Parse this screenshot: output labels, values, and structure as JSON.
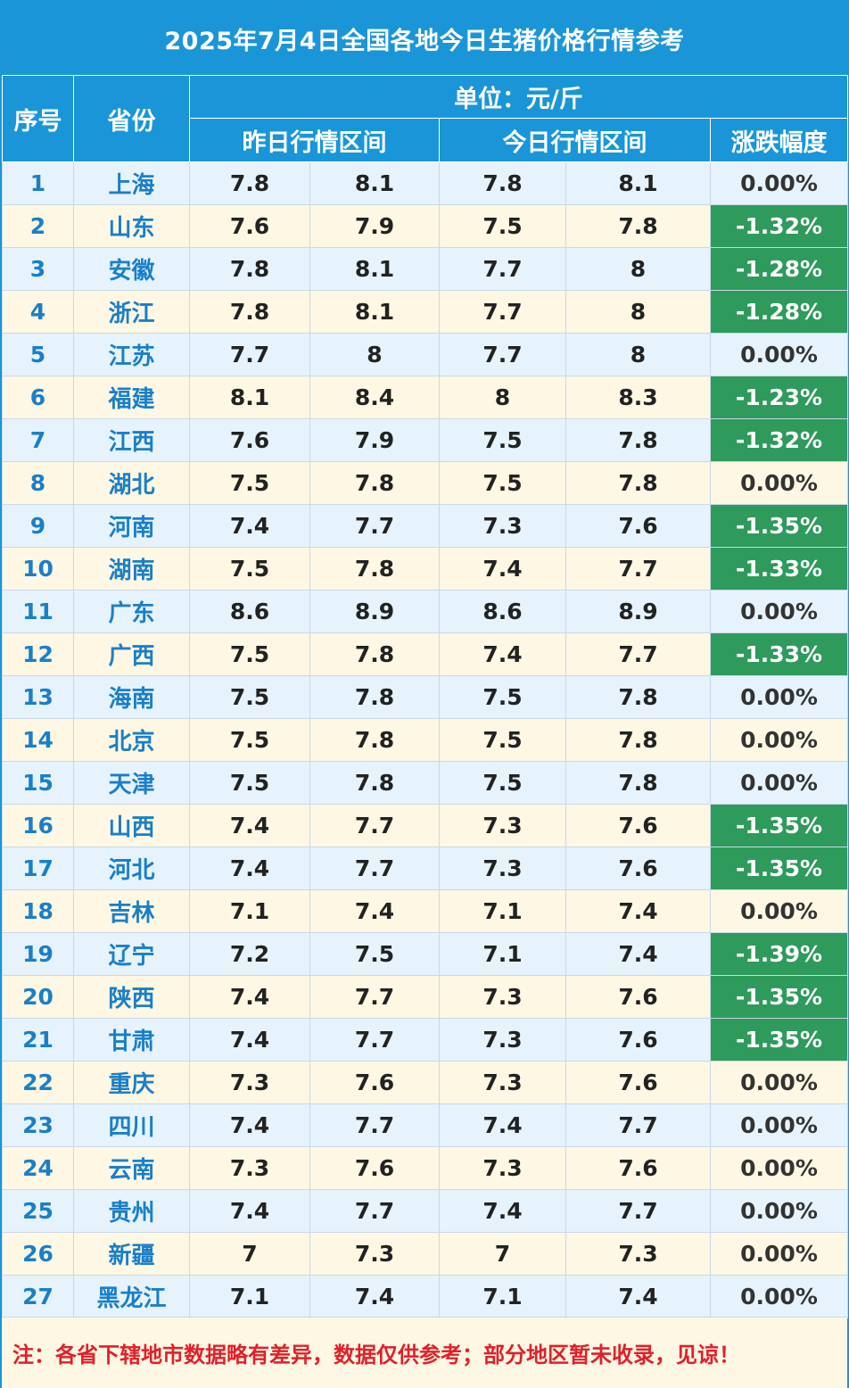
{
  "title": "2025年7月4日全国各地今日生猪价格行情参考",
  "headers": {
    "index": "序号",
    "province": "省份",
    "unit": "单位：元/斤",
    "yesterday": "昨日行情区间",
    "today": "今日行情区间",
    "change": "涨跌幅度"
  },
  "colors": {
    "header_blue": "#1a96d8",
    "row_blue": "#e6f3fc",
    "row_cream": "#fdf7e3",
    "decline_green": "#2e9a5c",
    "note_red": "#e0202a"
  },
  "rows": [
    {
      "idx": "1",
      "province": "上海",
      "y_low": "7.8",
      "y_high": "8.1",
      "t_low": "7.8",
      "t_high": "8.1",
      "change": "0.00%"
    },
    {
      "idx": "2",
      "province": "山东",
      "y_low": "7.6",
      "y_high": "7.9",
      "t_low": "7.5",
      "t_high": "7.8",
      "change": "-1.32%"
    },
    {
      "idx": "3",
      "province": "安徽",
      "y_low": "7.8",
      "y_high": "8.1",
      "t_low": "7.7",
      "t_high": "8",
      "change": "-1.28%"
    },
    {
      "idx": "4",
      "province": "浙江",
      "y_low": "7.8",
      "y_high": "8.1",
      "t_low": "7.7",
      "t_high": "8",
      "change": "-1.28%"
    },
    {
      "idx": "5",
      "province": "江苏",
      "y_low": "7.7",
      "y_high": "8",
      "t_low": "7.7",
      "t_high": "8",
      "change": "0.00%"
    },
    {
      "idx": "6",
      "province": "福建",
      "y_low": "8.1",
      "y_high": "8.4",
      "t_low": "8",
      "t_high": "8.3",
      "change": "-1.23%"
    },
    {
      "idx": "7",
      "province": "江西",
      "y_low": "7.6",
      "y_high": "7.9",
      "t_low": "7.5",
      "t_high": "7.8",
      "change": "-1.32%"
    },
    {
      "idx": "8",
      "province": "湖北",
      "y_low": "7.5",
      "y_high": "7.8",
      "t_low": "7.5",
      "t_high": "7.8",
      "change": "0.00%"
    },
    {
      "idx": "9",
      "province": "河南",
      "y_low": "7.4",
      "y_high": "7.7",
      "t_low": "7.3",
      "t_high": "7.6",
      "change": "-1.35%"
    },
    {
      "idx": "10",
      "province": "湖南",
      "y_low": "7.5",
      "y_high": "7.8",
      "t_low": "7.4",
      "t_high": "7.7",
      "change": "-1.33%"
    },
    {
      "idx": "11",
      "province": "广东",
      "y_low": "8.6",
      "y_high": "8.9",
      "t_low": "8.6",
      "t_high": "8.9",
      "change": "0.00%"
    },
    {
      "idx": "12",
      "province": "广西",
      "y_low": "7.5",
      "y_high": "7.8",
      "t_low": "7.4",
      "t_high": "7.7",
      "change": "-1.33%"
    },
    {
      "idx": "13",
      "province": "海南",
      "y_low": "7.5",
      "y_high": "7.8",
      "t_low": "7.5",
      "t_high": "7.8",
      "change": "0.00%"
    },
    {
      "idx": "14",
      "province": "北京",
      "y_low": "7.5",
      "y_high": "7.8",
      "t_low": "7.5",
      "t_high": "7.8",
      "change": "0.00%"
    },
    {
      "idx": "15",
      "province": "天津",
      "y_low": "7.5",
      "y_high": "7.8",
      "t_low": "7.5",
      "t_high": "7.8",
      "change": "0.00%"
    },
    {
      "idx": "16",
      "province": "山西",
      "y_low": "7.4",
      "y_high": "7.7",
      "t_low": "7.3",
      "t_high": "7.6",
      "change": "-1.35%"
    },
    {
      "idx": "17",
      "province": "河北",
      "y_low": "7.4",
      "y_high": "7.7",
      "t_low": "7.3",
      "t_high": "7.6",
      "change": "-1.35%"
    },
    {
      "idx": "18",
      "province": "吉林",
      "y_low": "7.1",
      "y_high": "7.4",
      "t_low": "7.1",
      "t_high": "7.4",
      "change": "0.00%"
    },
    {
      "idx": "19",
      "province": "辽宁",
      "y_low": "7.2",
      "y_high": "7.5",
      "t_low": "7.1",
      "t_high": "7.4",
      "change": "-1.39%"
    },
    {
      "idx": "20",
      "province": "陕西",
      "y_low": "7.4",
      "y_high": "7.7",
      "t_low": "7.3",
      "t_high": "7.6",
      "change": "-1.35%"
    },
    {
      "idx": "21",
      "province": "甘肃",
      "y_low": "7.4",
      "y_high": "7.7",
      "t_low": "7.3",
      "t_high": "7.6",
      "change": "-1.35%"
    },
    {
      "idx": "22",
      "province": "重庆",
      "y_low": "7.3",
      "y_high": "7.6",
      "t_low": "7.3",
      "t_high": "7.6",
      "change": "0.00%"
    },
    {
      "idx": "23",
      "province": "四川",
      "y_low": "7.4",
      "y_high": "7.7",
      "t_low": "7.4",
      "t_high": "7.7",
      "change": "0.00%"
    },
    {
      "idx": "24",
      "province": "云南",
      "y_low": "7.3",
      "y_high": "7.6",
      "t_low": "7.3",
      "t_high": "7.6",
      "change": "0.00%"
    },
    {
      "idx": "25",
      "province": "贵州",
      "y_low": "7.4",
      "y_high": "7.7",
      "t_low": "7.4",
      "t_high": "7.7",
      "change": "0.00%"
    },
    {
      "idx": "26",
      "province": "新疆",
      "y_low": "7",
      "y_high": "7.3",
      "t_low": "7",
      "t_high": "7.3",
      "change": "0.00%"
    },
    {
      "idx": "27",
      "province": "黑龙江",
      "y_low": "7.1",
      "y_high": "7.4",
      "t_low": "7.1",
      "t_high": "7.4",
      "change": "0.00%"
    }
  ],
  "note": "注：各省下辖地市数据略有差异，数据仅供参考；部分地区暂未收录，见谅！"
}
